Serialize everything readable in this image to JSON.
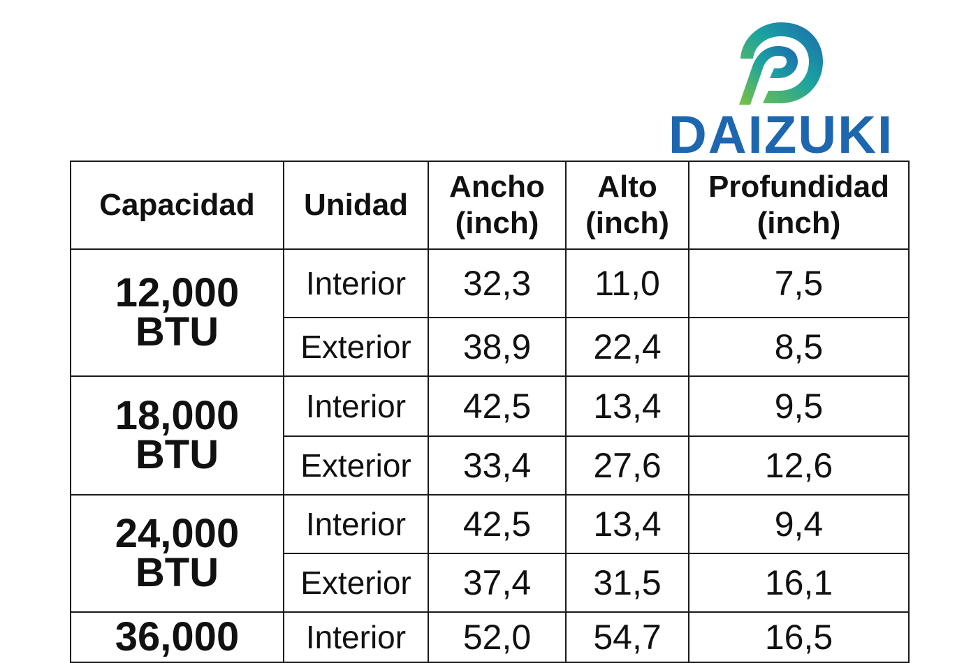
{
  "brand": {
    "name": "DAIZUKI",
    "colors": {
      "blue": "#1d66b0",
      "green": "#7cc242",
      "teal": "#1aa3a0"
    }
  },
  "table": {
    "headers": [
      [
        "Capacidad"
      ],
      [
        "Unidad"
      ],
      [
        "Ancho",
        "(inch)"
      ],
      [
        "Alto",
        "(inch)"
      ],
      [
        "Profundidad",
        "(inch)"
      ]
    ],
    "groups": [
      {
        "capacity": [
          "12,000",
          "BTU"
        ],
        "rows": [
          {
            "unit": "Interior",
            "ancho": "32,3",
            "alto": "11,0",
            "profundidad": "7,5"
          },
          {
            "unit": "Exterior",
            "ancho": "38,9",
            "alto": "22,4",
            "profundidad": "8,5"
          }
        ]
      },
      {
        "capacity": [
          "18,000",
          "BTU"
        ],
        "rows": [
          {
            "unit": "Interior",
            "ancho": "42,5",
            "alto": "13,4",
            "profundidad": "9,5"
          },
          {
            "unit": "Exterior",
            "ancho": "33,4",
            "alto": "27,6",
            "profundidad": "12,6"
          }
        ]
      },
      {
        "capacity": [
          "24,000",
          "BTU"
        ],
        "rows": [
          {
            "unit": "Interior",
            "ancho": "42,5",
            "alto": "13,4",
            "profundidad": "9,4"
          },
          {
            "unit": "Exterior",
            "ancho": "37,4",
            "alto": "31,5",
            "profundidad": "16,1"
          }
        ]
      },
      {
        "capacity": [
          "36,000"
        ],
        "rows": [
          {
            "unit": "Interior",
            "ancho": "52,0",
            "alto": "54,7",
            "profundidad": "16,5"
          }
        ]
      }
    ]
  }
}
